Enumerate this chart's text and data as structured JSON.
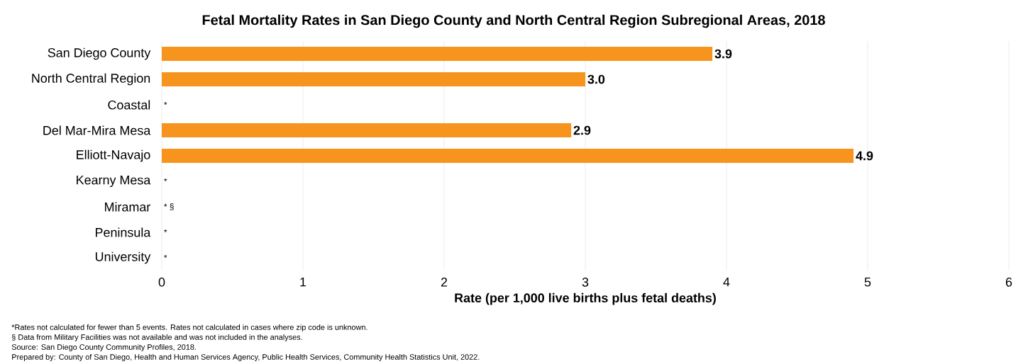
{
  "chart_data": {
    "type": "bar",
    "orientation": "horizontal",
    "title": "Fetal Mortality Rates in San Diego County and North Central Region Subregional Areas, 2018",
    "categories": [
      "San Diego County",
      "North Central Region",
      "Coastal",
      "Del Mar-Mira Mesa",
      "Elliott-Navajo",
      "Kearny Mesa",
      "Miramar",
      "Peninsula",
      "University"
    ],
    "values": [
      3.9,
      3.0,
      null,
      2.9,
      4.9,
      null,
      null,
      null,
      null
    ],
    "value_labels": [
      "3.9",
      "3.0",
      "*",
      "2.9",
      "4.9",
      "*",
      "* §",
      "*",
      "*"
    ],
    "color": "#f7941d",
    "xlabel": "Rate (per 1,000 live births plus fetal deaths)",
    "xlim": [
      0,
      6
    ],
    "xticks": [
      0,
      1,
      2,
      3,
      4,
      5,
      6
    ],
    "grid": "x",
    "annotations": [
      "*Rates not calculated for fewer than 5 events. Rates not calculated in cases where zip code is unknown.",
      "§ Data from Military Facilities was not available and was not included in the analyses.",
      "Source: San Diego County Community Profiles, 2018.",
      "Prepared by: County of San Diego, Health and Human Services Agency, Public Health Services, Community Health Statistics Unit, 2022."
    ]
  }
}
